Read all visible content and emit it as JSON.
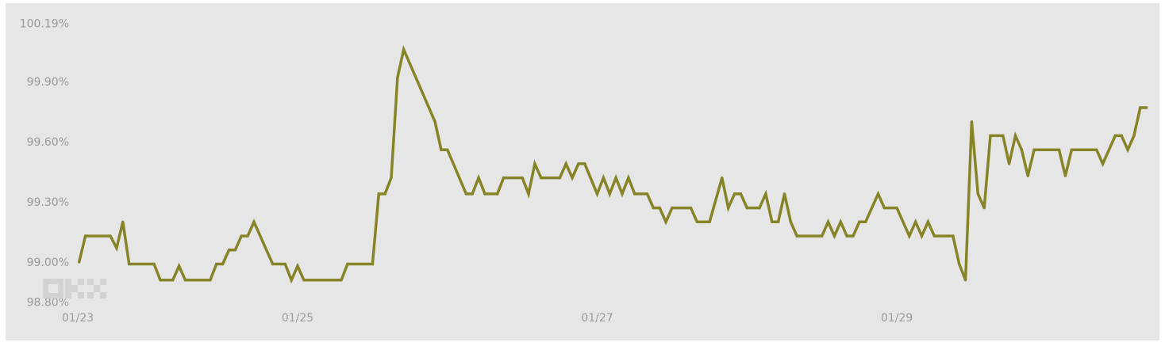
{
  "chart_data": {
    "type": "line",
    "title": "",
    "xlabel": "",
    "ylabel": "",
    "ylim": [
      98.8,
      100.19
    ],
    "y_ticks": [
      "100.19%",
      "99.90%",
      "99.60%",
      "99.30%",
      "99.00%",
      "98.80%"
    ],
    "y_tick_values": [
      100.19,
      99.9,
      99.6,
      99.3,
      99.0,
      98.8
    ],
    "x_ticks": [
      "01/23",
      "01/25",
      "01/27",
      "01/29"
    ],
    "grid": false,
    "legend": "none",
    "line_color": "#868426",
    "background": "#e6e6e6",
    "watermark": "OKX",
    "series": [
      {
        "points": [
          [
            "01/23 13:00",
            99.0
          ],
          [
            "01/23 14:00",
            99.13
          ],
          [
            "01/23 18:00",
            99.13
          ],
          [
            "01/23 19:00",
            99.07
          ],
          [
            "01/23 20:00",
            99.2
          ],
          [
            "01/23 21:00",
            98.99
          ],
          [
            "01/24 01:00",
            98.99
          ],
          [
            "01/24 02:00",
            98.91
          ],
          [
            "01/24 04:00",
            98.91
          ],
          [
            "01/24 05:00",
            98.98
          ],
          [
            "01/24 06:00",
            98.91
          ],
          [
            "01/24 10:00",
            98.91
          ],
          [
            "01/24 11:00",
            98.99
          ],
          [
            "01/24 12:00",
            98.99
          ],
          [
            "01/24 13:00",
            99.06
          ],
          [
            "01/24 14:00",
            99.06
          ],
          [
            "01/24 15:00",
            99.13
          ],
          [
            "01/24 16:00",
            99.13
          ],
          [
            "01/24 17:00",
            99.2
          ],
          [
            "01/24 20:00",
            98.99
          ],
          [
            "01/24 22:00",
            98.99
          ],
          [
            "01/24 23:00",
            98.91
          ],
          [
            "01/25 00:00",
            98.98
          ],
          [
            "01/25 01:00",
            98.91
          ],
          [
            "01/25 07:00",
            98.91
          ],
          [
            "01/25 08:00",
            98.99
          ],
          [
            "01/25 12:00",
            98.99
          ],
          [
            "01/25 13:00",
            99.34
          ],
          [
            "01/25 14:00",
            99.34
          ],
          [
            "01/25 15:00",
            99.42
          ],
          [
            "01/25 16:00",
            99.92
          ],
          [
            "01/25 17:00",
            100.06
          ],
          [
            "01/25 22:00",
            99.7
          ],
          [
            "01/25 23:00",
            99.56
          ],
          [
            "01/26 00:00",
            99.56
          ],
          [
            "01/26 03:00",
            99.34
          ],
          [
            "01/26 04:00",
            99.34
          ],
          [
            "01/26 05:00",
            99.42
          ],
          [
            "01/26 06:00",
            99.34
          ],
          [
            "01/26 08:00",
            99.34
          ],
          [
            "01/26 09:00",
            99.42
          ],
          [
            "01/26 12:00",
            99.42
          ],
          [
            "01/26 13:00",
            99.34
          ],
          [
            "01/26 14:00",
            99.49
          ],
          [
            "01/26 15:00",
            99.42
          ],
          [
            "01/26 18:00",
            99.42
          ],
          [
            "01/26 19:00",
            99.49
          ],
          [
            "01/26 20:00",
            99.42
          ],
          [
            "01/26 21:00",
            99.49
          ],
          [
            "01/26 22:00",
            99.49
          ],
          [
            "01/27 00:00",
            99.34
          ],
          [
            "01/27 01:00",
            99.42
          ],
          [
            "01/27 02:00",
            99.34
          ],
          [
            "01/27 03:00",
            99.42
          ],
          [
            "01/27 04:00",
            99.34
          ],
          [
            "01/27 05:00",
            99.42
          ],
          [
            "01/27 06:00",
            99.34
          ],
          [
            "01/27 08:00",
            99.34
          ],
          [
            "01/27 09:00",
            99.27
          ],
          [
            "01/27 10:00",
            99.27
          ],
          [
            "01/27 11:00",
            99.2
          ],
          [
            "01/27 12:00",
            99.27
          ],
          [
            "01/27 15:00",
            99.27
          ],
          [
            "01/27 16:00",
            99.2
          ],
          [
            "01/27 18:00",
            99.2
          ],
          [
            "01/27 20:00",
            99.42
          ],
          [
            "01/27 21:00",
            99.27
          ],
          [
            "01/27 22:00",
            99.34
          ],
          [
            "01/27 23:00",
            99.34
          ],
          [
            "01/28 00:00",
            99.27
          ],
          [
            "01/28 02:00",
            99.27
          ],
          [
            "01/28 03:00",
            99.34
          ],
          [
            "01/28 04:00",
            99.2
          ],
          [
            "01/28 05:00",
            99.2
          ],
          [
            "01/28 06:00",
            99.34
          ],
          [
            "01/28 07:00",
            99.2
          ],
          [
            "01/28 08:00",
            99.13
          ],
          [
            "01/28 12:00",
            99.13
          ],
          [
            "01/28 13:00",
            99.2
          ],
          [
            "01/28 14:00",
            99.13
          ],
          [
            "01/28 15:00",
            99.2
          ],
          [
            "01/28 16:00",
            99.13
          ],
          [
            "01/28 17:00",
            99.13
          ],
          [
            "01/28 18:00",
            99.2
          ],
          [
            "01/28 19:00",
            99.2
          ],
          [
            "01/28 21:00",
            99.34
          ],
          [
            "01/28 22:00",
            99.27
          ],
          [
            "01/29 00:00",
            99.27
          ],
          [
            "01/29 02:00",
            99.13
          ],
          [
            "01/29 03:00",
            99.2
          ],
          [
            "01/29 04:00",
            99.13
          ],
          [
            "01/29 05:00",
            99.2
          ],
          [
            "01/29 06:00",
            99.13
          ],
          [
            "01/29 09:00",
            99.13
          ],
          [
            "01/29 10:00",
            98.99
          ],
          [
            "01/29 11:00",
            98.91
          ],
          [
            "01/29 12:00",
            99.7
          ],
          [
            "01/29 13:00",
            99.34
          ],
          [
            "01/29 14:00",
            99.27
          ],
          [
            "01/29 15:00",
            99.63
          ],
          [
            "01/29 17:00",
            99.63
          ],
          [
            "01/29 18:00",
            99.49
          ],
          [
            "01/29 19:00",
            99.63
          ],
          [
            "01/29 20:00",
            99.56
          ],
          [
            "01/29 21:00",
            99.43
          ],
          [
            "01/29 22:00",
            99.56
          ],
          [
            "01/30 02:00",
            99.56
          ],
          [
            "01/30 03:00",
            99.43
          ],
          [
            "01/30 04:00",
            99.56
          ],
          [
            "01/30 08:00",
            99.56
          ],
          [
            "01/30 09:00",
            99.49
          ],
          [
            "01/30 11:00",
            99.63
          ],
          [
            "01/30 12:00",
            99.63
          ],
          [
            "01/30 13:00",
            99.56
          ],
          [
            "01/30 14:00",
            99.63
          ],
          [
            "01/30 15:00",
            99.77
          ],
          [
            "01/30 16:00",
            99.77
          ]
        ]
      }
    ]
  }
}
